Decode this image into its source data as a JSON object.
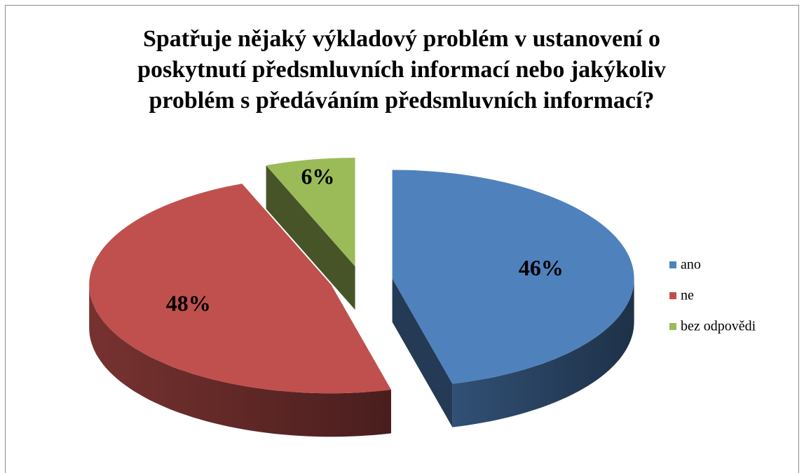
{
  "chart_data": {
    "type": "pie",
    "title": "Spatřuje nějaký výkladový problém v ustanovení o poskytnutí předsmluvních informací nebo jakýkoliv problém s předáváním předsmluvních informací?",
    "categories": [
      "ano",
      "ne",
      "bez odpovědi"
    ],
    "values": [
      46,
      48,
      6
    ],
    "value_labels": [
      "46%",
      "48%",
      "6%"
    ],
    "colors": [
      "#4f81bd",
      "#c0504d",
      "#9bbb59"
    ],
    "legend": "right"
  }
}
